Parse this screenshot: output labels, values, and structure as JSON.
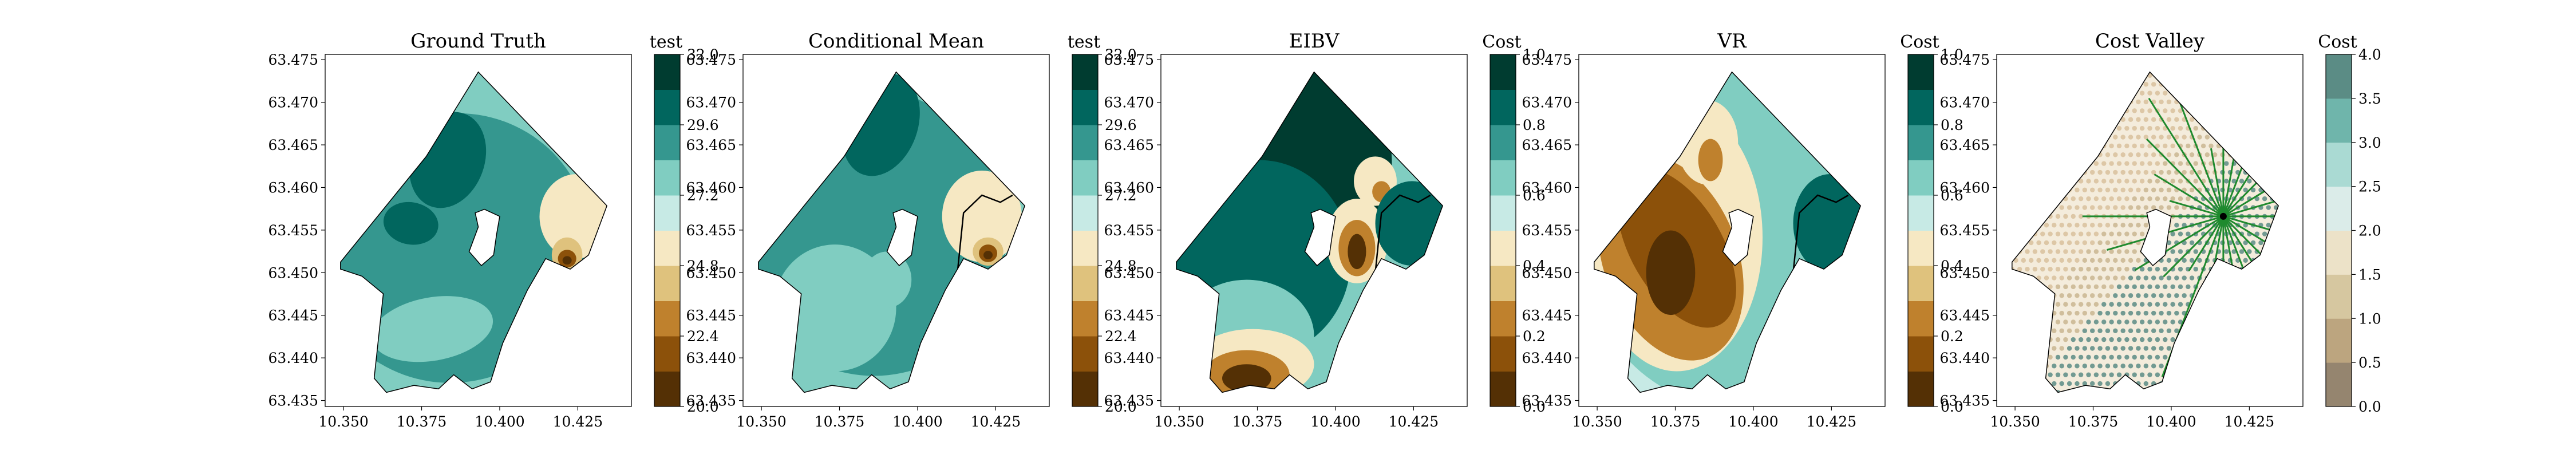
{
  "chart_data": [
    {
      "type": "heatmap",
      "title": "Ground Truth",
      "x_ticks": [
        "10.350",
        "10.375",
        "10.400",
        "10.425"
      ],
      "y_ticks": [
        "63.475",
        "63.470",
        "63.465",
        "63.460",
        "63.455",
        "63.450",
        "63.445",
        "63.440",
        "63.435"
      ],
      "colorbar": {
        "title": "test",
        "ticks": [
          "20.0",
          "22.4",
          "24.8",
          "27.2",
          "29.6",
          "32.0"
        ],
        "levels": [
          "#543005",
          "#8c510a",
          "#bf812d",
          "#dfc27d",
          "#f6e8c3",
          "#c7eae5",
          "#80cdc1",
          "#35978f",
          "#01665e",
          "#003c30"
        ]
      }
    },
    {
      "type": "heatmap",
      "title": "Conditional Mean",
      "x_ticks": [
        "10.350",
        "10.375",
        "10.400",
        "10.425"
      ],
      "y_ticks": [
        "63.475",
        "63.470",
        "63.465",
        "63.460",
        "63.455",
        "63.450",
        "63.445",
        "63.440",
        "63.435"
      ],
      "colorbar": {
        "title": "test",
        "ticks": [
          "20.0",
          "22.4",
          "24.8",
          "27.2",
          "29.6",
          "32.0"
        ],
        "levels": [
          "#543005",
          "#8c510a",
          "#bf812d",
          "#dfc27d",
          "#f6e8c3",
          "#c7eae5",
          "#80cdc1",
          "#35978f",
          "#01665e",
          "#003c30"
        ]
      }
    },
    {
      "type": "heatmap",
      "title": "EIBV",
      "x_ticks": [
        "10.350",
        "10.375",
        "10.400",
        "10.425"
      ],
      "y_ticks": [
        "63.475",
        "63.470",
        "63.465",
        "63.460",
        "63.455",
        "63.450",
        "63.445",
        "63.440",
        "63.435"
      ],
      "colorbar": {
        "title": "Cost",
        "ticks": [
          "0.0",
          "0.2",
          "0.4",
          "0.6",
          "0.8",
          "1.0"
        ],
        "levels": [
          "#543005",
          "#8c510a",
          "#bf812d",
          "#dfc27d",
          "#f6e8c3",
          "#c7eae5",
          "#80cdc1",
          "#35978f",
          "#01665e",
          "#003c30"
        ]
      }
    },
    {
      "type": "heatmap",
      "title": "VR",
      "x_ticks": [
        "10.350",
        "10.375",
        "10.400",
        "10.425"
      ],
      "y_ticks": [
        "63.475",
        "63.470",
        "63.465",
        "63.460",
        "63.455",
        "63.450",
        "63.445",
        "63.440",
        "63.435"
      ],
      "colorbar": {
        "title": "Cost",
        "ticks": [
          "0.0",
          "0.2",
          "0.4",
          "0.6",
          "0.8",
          "1.0"
        ],
        "levels": [
          "#543005",
          "#8c510a",
          "#bf812d",
          "#dfc27d",
          "#f6e8c3",
          "#c7eae5",
          "#80cdc1",
          "#35978f",
          "#01665e",
          "#003c30"
        ]
      }
    },
    {
      "type": "scatter",
      "title": "Cost Valley",
      "x_ticks": [
        "10.350",
        "10.375",
        "10.400",
        "10.425"
      ],
      "y_ticks": [
        "63.475",
        "63.470",
        "63.465",
        "63.460",
        "63.455",
        "63.450",
        "63.445",
        "63.440",
        "63.435"
      ],
      "colorbar": {
        "title": "Cost",
        "ticks": [
          "0.0",
          "0.5",
          "1.0",
          "1.5",
          "2.0",
          "2.5",
          "3.0",
          "3.5",
          "4.0"
        ],
        "levels": [
          "#95856f",
          "#bca57f",
          "#d6c7a0",
          "#ece2c8",
          "#dbece9",
          "#aadad3",
          "#6fb5ab",
          "#5b8c85"
        ]
      }
    }
  ]
}
